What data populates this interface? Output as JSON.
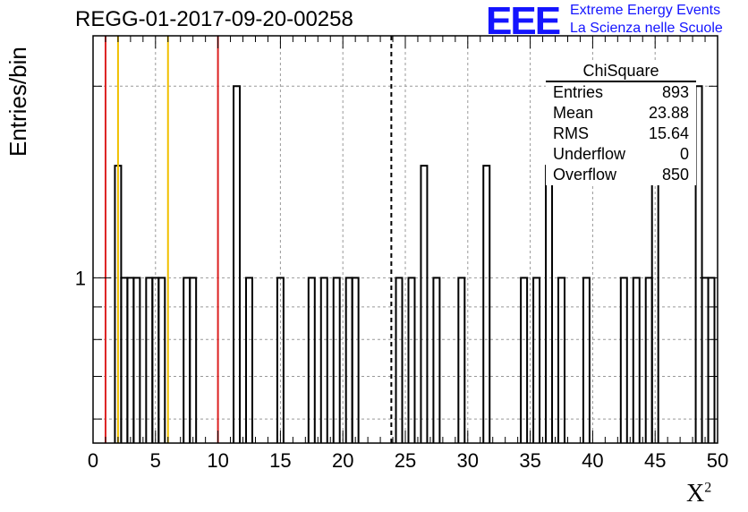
{
  "title": "REGG-01-2017-09-20-00258",
  "logo": {
    "mark": "EEE",
    "line1": "Extreme Energy Events",
    "line2": "La Scienza nelle Scuole",
    "color": "#1414ff"
  },
  "stats": {
    "title": "ChiSquare",
    "rows": [
      {
        "label": "Entries",
        "value": "893"
      },
      {
        "label": "Mean",
        "value": "23.88"
      },
      {
        "label": "RMS",
        "value": "15.64"
      },
      {
        "label": "Underflow",
        "value": "0"
      },
      {
        "label": "Overflow",
        "value": "850"
      }
    ]
  },
  "chart_data": {
    "type": "bar",
    "histogram": true,
    "title": "REGG-01-2017-09-20-00258",
    "xlabel": "X²",
    "ylabel": "Entries/bin",
    "xlim": [
      0,
      50
    ],
    "ylim": [
      0.55,
      2.4
    ],
    "ylog": true,
    "grid": true,
    "bin_width": 0.5,
    "xticks": [
      0,
      5,
      10,
      15,
      20,
      25,
      30,
      35,
      40,
      45,
      50
    ],
    "yticks": [
      1
    ],
    "bins": [
      {
        "x": 2.0,
        "y": 1.5
      },
      {
        "x": 2.5,
        "y": 1
      },
      {
        "x": 3.0,
        "y": 1
      },
      {
        "x": 3.5,
        "y": 1
      },
      {
        "x": 4.5,
        "y": 1
      },
      {
        "x": 5.0,
        "y": 1
      },
      {
        "x": 5.5,
        "y": 1
      },
      {
        "x": 7.5,
        "y": 1
      },
      {
        "x": 8.0,
        "y": 1
      },
      {
        "x": 11.5,
        "y": 2
      },
      {
        "x": 12.5,
        "y": 1
      },
      {
        "x": 15.0,
        "y": 1
      },
      {
        "x": 17.5,
        "y": 1
      },
      {
        "x": 18.5,
        "y": 1
      },
      {
        "x": 19.5,
        "y": 1
      },
      {
        "x": 20.5,
        "y": 1
      },
      {
        "x": 21.0,
        "y": 1
      },
      {
        "x": 24.5,
        "y": 1
      },
      {
        "x": 25.5,
        "y": 1
      },
      {
        "x": 26.5,
        "y": 1.5
      },
      {
        "x": 27.5,
        "y": 1
      },
      {
        "x": 29.5,
        "y": 1
      },
      {
        "x": 31.5,
        "y": 1.5
      },
      {
        "x": 34.5,
        "y": 1
      },
      {
        "x": 35.5,
        "y": 1
      },
      {
        "x": 36.5,
        "y": 1.5
      },
      {
        "x": 37.5,
        "y": 1
      },
      {
        "x": 39.5,
        "y": 1
      },
      {
        "x": 42.5,
        "y": 1
      },
      {
        "x": 43.5,
        "y": 1
      },
      {
        "x": 44.5,
        "y": 1
      },
      {
        "x": 45.0,
        "y": 1.5
      },
      {
        "x": 48.5,
        "y": 2
      },
      {
        "x": 49.0,
        "y": 1
      },
      {
        "x": 49.5,
        "y": 1
      }
    ],
    "vertical_lines": [
      {
        "x": 1,
        "color": "#dd2222",
        "style": "solid"
      },
      {
        "x": 2,
        "color": "#f0c000",
        "style": "solid"
      },
      {
        "x": 6,
        "color": "#f0c000",
        "style": "solid"
      },
      {
        "x": 10,
        "color": "#dd2222",
        "style": "solid"
      },
      {
        "x": 23.88,
        "color": "#000000",
        "style": "dashed"
      }
    ]
  }
}
